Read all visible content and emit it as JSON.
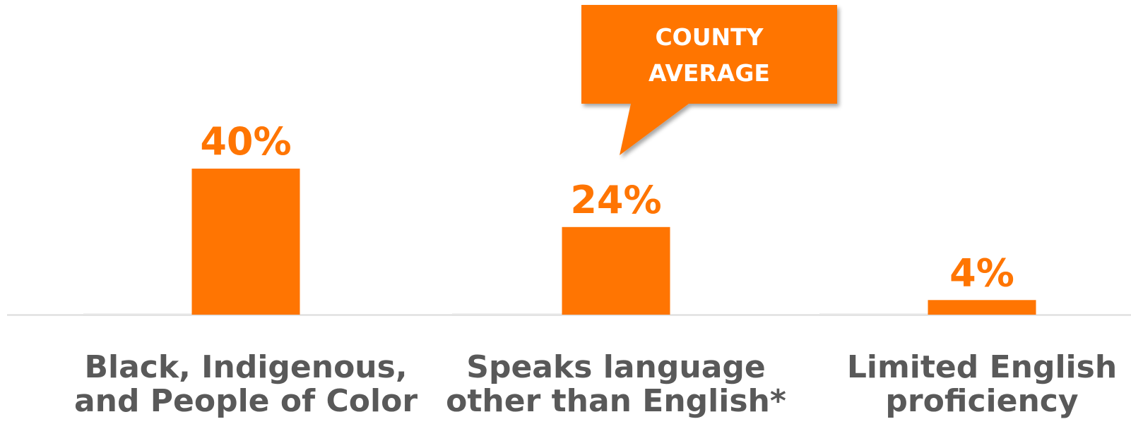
{
  "chart_data": {
    "type": "bar",
    "categories": [
      [
        "Black, Indigenous,",
        "and People of Color"
      ],
      [
        "Speaks language",
        "other than English*"
      ],
      [
        "Limited English",
        "proficiency"
      ]
    ],
    "value_labels": [
      "40%",
      "24%",
      "4%"
    ],
    "values": [
      40,
      24,
      4
    ],
    "ylim": [
      0,
      40
    ],
    "title": "",
    "xlabel": "",
    "ylabel": "",
    "grid": false,
    "baseline_visible": true,
    "annotation": {
      "lines": [
        "COUNTY",
        "AVERAGE"
      ],
      "points_to_category_index": 1
    },
    "colors": {
      "bar": "#ff7502",
      "value_label": "#ff7502",
      "category_label": "#595959",
      "baseline": "#d9d9d9",
      "faint_baseline": "#eeeeee",
      "callout_fill": "#ff7502",
      "callout_text": "#ffffff"
    }
  }
}
